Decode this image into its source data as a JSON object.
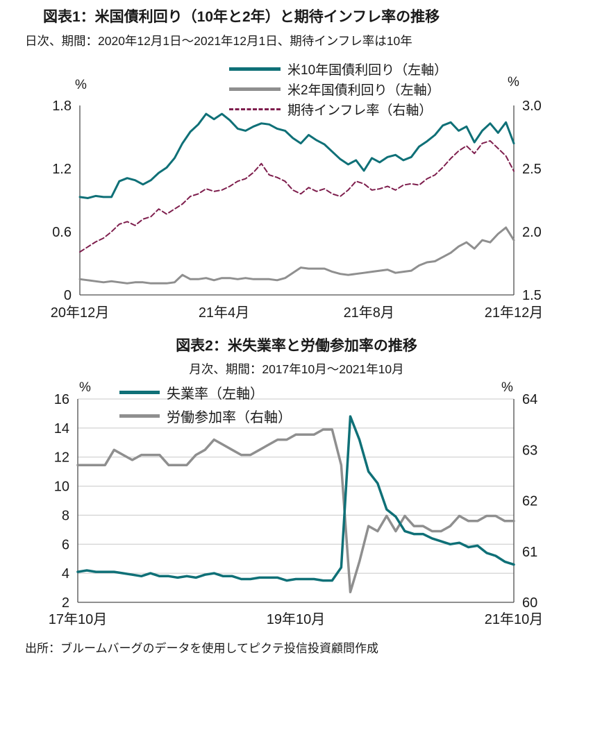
{
  "source_note": "出所：ブルームバーグのデータを使用してピクテ投信投資顧問作成",
  "colors": {
    "teal": "#0f7077",
    "gray": "#8f8f8f",
    "maroon": "#7e1e4d",
    "text": "#1a1a1a",
    "axis": "#4d4d4d",
    "grid": "#c8c8c8"
  },
  "chart_data": [
    {
      "type": "line",
      "title": "図表1：米国債利回り（10年と2年）と期待インフレ率の推移",
      "subtitle": "日次、期間：2020年12月1日～2021年12月1日、期待インフレ率は10年",
      "unit_left": "%",
      "unit_right": "%",
      "grid": false,
      "legend_position": "top",
      "left_axis": {
        "min": 0,
        "max": 1.8,
        "ticks": [
          0,
          0.6,
          1.2,
          1.8
        ],
        "tick_labels": [
          "0",
          "0.6",
          "1.2",
          "1.8"
        ]
      },
      "right_axis": {
        "min": 1.5,
        "max": 3.0,
        "ticks": [
          1.5,
          2.0,
          2.5,
          3.0
        ],
        "tick_labels": [
          "1.5",
          "2.0",
          "2.5",
          "3.0"
        ]
      },
      "x_tick_labels": [
        "20年12月",
        "21年4月",
        "21年8月",
        "21年12月"
      ],
      "x_tick_pos": [
        0,
        0.332,
        0.666,
        1
      ],
      "legend": [
        {
          "label": "米10年国債利回り（左軸）",
          "color": "#0f7077",
          "dash": false
        },
        {
          "label": "米2年国債利回り（左軸）",
          "color": "#8f8f8f",
          "dash": false
        },
        {
          "label": "期待インフレ率（右軸）",
          "color": "#7e1e4d",
          "dash": true
        }
      ],
      "series": [
        {
          "name": "米10年国債利回り（左軸）",
          "axis": "left",
          "color": "#0f7077",
          "width": 3,
          "dash": null,
          "values": [
            0.93,
            0.92,
            0.94,
            0.93,
            0.93,
            1.08,
            1.11,
            1.09,
            1.05,
            1.09,
            1.16,
            1.21,
            1.3,
            1.44,
            1.55,
            1.62,
            1.72,
            1.67,
            1.72,
            1.66,
            1.58,
            1.56,
            1.6,
            1.63,
            1.62,
            1.58,
            1.56,
            1.49,
            1.44,
            1.52,
            1.47,
            1.43,
            1.36,
            1.29,
            1.24,
            1.28,
            1.18,
            1.3,
            1.26,
            1.31,
            1.33,
            1.28,
            1.31,
            1.41,
            1.46,
            1.52,
            1.61,
            1.64,
            1.56,
            1.6,
            1.45,
            1.56,
            1.63,
            1.54,
            1.64,
            1.44
          ]
        },
        {
          "name": "米2年国債利回り（左軸）",
          "axis": "left",
          "color": "#8f8f8f",
          "width": 3,
          "dash": null,
          "values": [
            0.15,
            0.14,
            0.13,
            0.12,
            0.13,
            0.12,
            0.11,
            0.12,
            0.12,
            0.11,
            0.11,
            0.11,
            0.12,
            0.19,
            0.15,
            0.15,
            0.16,
            0.14,
            0.16,
            0.16,
            0.15,
            0.16,
            0.15,
            0.15,
            0.15,
            0.14,
            0.16,
            0.21,
            0.26,
            0.25,
            0.25,
            0.25,
            0.22,
            0.2,
            0.19,
            0.2,
            0.21,
            0.22,
            0.23,
            0.24,
            0.21,
            0.22,
            0.23,
            0.28,
            0.31,
            0.32,
            0.36,
            0.4,
            0.46,
            0.5,
            0.44,
            0.52,
            0.5,
            0.58,
            0.64,
            0.52
          ]
        },
        {
          "name": "期待インフレ率（右軸）",
          "axis": "right",
          "color": "#7e1e4d",
          "width": 2,
          "dash": "7,4",
          "values": [
            1.84,
            1.88,
            1.92,
            1.95,
            2.0,
            2.06,
            2.08,
            2.05,
            2.1,
            2.12,
            2.18,
            2.14,
            2.18,
            2.22,
            2.28,
            2.3,
            2.34,
            2.32,
            2.33,
            2.36,
            2.4,
            2.42,
            2.47,
            2.54,
            2.45,
            2.43,
            2.4,
            2.33,
            2.3,
            2.35,
            2.32,
            2.34,
            2.3,
            2.28,
            2.33,
            2.4,
            2.38,
            2.33,
            2.34,
            2.36,
            2.33,
            2.37,
            2.38,
            2.37,
            2.42,
            2.45,
            2.51,
            2.58,
            2.64,
            2.68,
            2.62,
            2.7,
            2.72,
            2.66,
            2.6,
            2.48
          ]
        }
      ]
    },
    {
      "type": "line",
      "title": "図表2：米失業率と労働参加率の推移",
      "subtitle": "月次、期間：2017年10月～2021年10月",
      "unit_left": "%",
      "unit_right": "%",
      "grid": true,
      "legend_position": "top-left",
      "left_axis": {
        "min": 2,
        "max": 16,
        "ticks": [
          2,
          4,
          6,
          8,
          10,
          12,
          14,
          16
        ],
        "tick_labels": [
          "2",
          "4",
          "6",
          "8",
          "10",
          "12",
          "14",
          "16"
        ]
      },
      "right_axis": {
        "min": 60,
        "max": 64,
        "ticks": [
          60,
          61,
          62,
          63,
          64
        ],
        "tick_labels": [
          "60",
          "61",
          "62",
          "63",
          "64"
        ]
      },
      "x_tick_labels": [
        "17年10月",
        "19年10月",
        "21年10月"
      ],
      "x_tick_pos": [
        0,
        0.5,
        1
      ],
      "legend": [
        {
          "label": "失業率（左軸）",
          "color": "#0f7077",
          "dash": false
        },
        {
          "label": "労働参加率（右軸）",
          "color": "#8f8f8f",
          "dash": false
        }
      ],
      "series": [
        {
          "name": "失業率（左軸）",
          "axis": "left",
          "color": "#0f7077",
          "width": 3.5,
          "dash": null,
          "values": [
            4.1,
            4.2,
            4.1,
            4.1,
            4.1,
            4.0,
            3.9,
            3.8,
            4.0,
            3.8,
            3.8,
            3.7,
            3.8,
            3.7,
            3.9,
            4.0,
            3.8,
            3.8,
            3.6,
            3.6,
            3.7,
            3.7,
            3.7,
            3.5,
            3.6,
            3.6,
            3.6,
            3.5,
            3.5,
            4.4,
            14.8,
            13.2,
            11.0,
            10.2,
            8.4,
            7.9,
            6.9,
            6.7,
            6.7,
            6.4,
            6.2,
            6.0,
            6.1,
            5.8,
            5.9,
            5.4,
            5.2,
            4.8,
            4.6
          ]
        },
        {
          "name": "労働参加率（右軸）",
          "axis": "right",
          "color": "#8f8f8f",
          "width": 3.5,
          "dash": null,
          "values": [
            62.7,
            62.7,
            62.7,
            62.7,
            63.0,
            62.9,
            62.8,
            62.9,
            62.9,
            62.9,
            62.7,
            62.7,
            62.7,
            62.9,
            63.0,
            63.2,
            63.1,
            63.0,
            62.9,
            62.9,
            63.0,
            63.1,
            63.2,
            63.2,
            63.3,
            63.3,
            63.3,
            63.4,
            63.4,
            62.7,
            60.2,
            60.8,
            61.5,
            61.4,
            61.7,
            61.4,
            61.7,
            61.5,
            61.5,
            61.4,
            61.4,
            61.5,
            61.7,
            61.6,
            61.6,
            61.7,
            61.7,
            61.6,
            61.6
          ]
        }
      ]
    }
  ]
}
